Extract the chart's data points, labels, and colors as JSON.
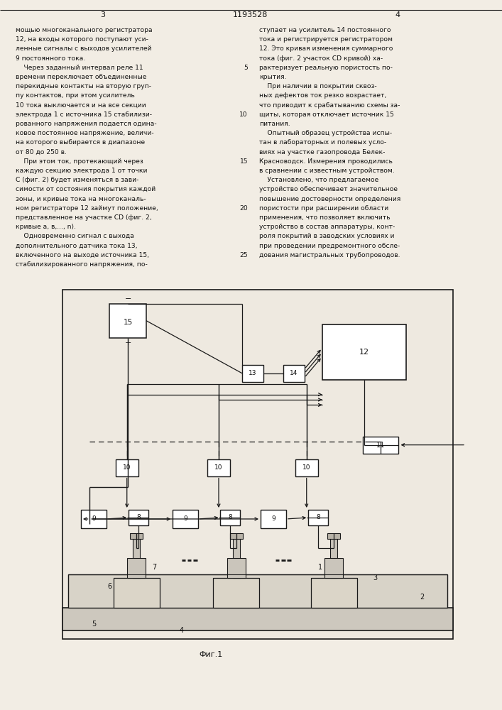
{
  "bg": "#f2ede4",
  "lc": "#1a1a1a",
  "bc": "#ffffff",
  "fig_label": "Фиг.1",
  "header_line": 1193528,
  "page_left": "3",
  "page_right": "4",
  "left_col": [
    "мощью многоканального регистратора",
    "12, на входы которого поступают уси-",
    "ленные сигналы с выходов усилителей",
    "9 постоянного тока.",
    "    Через заданный интервал реле 11",
    "времени переключает объединенные",
    "перекидные контакты на вторую груп-",
    "пу контактов, при этом усилитель",
    "10 тока выключается и на все секции",
    "электрода 1 с источника 15 стабилизи-",
    "рованного напряжения подается одина-",
    "ковое постоянное напряжение, величи-",
    "на которого выбирается в диапазоне",
    "от 80 до 250 в.",
    "    При этом ток, протекающий через",
    "каждую секцию электрода 1 от точки",
    "С (фиг. 2) будет изменяться в зави-",
    "симости от состояния покрытия каждой",
    "зоны, и кривые тока на многоканаль-",
    "ном регистраторе 12 займут положение,",
    "представленное на участке CD (фиг. 2,",
    "кривые a, в,..., n).",
    "    Одновременно сигнал с выхода",
    "дополнительного датчика тока 13,",
    "включенного на выходе источника 15,",
    "стабилизированного напряжения, по-"
  ],
  "right_col": [
    "ступает на усилитель 14 постоянного",
    "тока и регистрируется регистратором",
    "12. Это кривая изменения суммарного",
    "тока (фиг. 2 участок CD кривой) ха-",
    "рактеризует реальную пористость по-",
    "крытия.",
    "    При наличии в покрытии сквоз-",
    "ных дефектов ток резко возрастает,",
    "что приводит к срабатыванию схемы за-",
    "щиты, которая отключает источник 15",
    "питания.",
    "    Опытный образец устройства испы-",
    "тан в лабораторных и полевых усло-",
    "виях на участке газопровода Белек-",
    "Красноводск. Измерения проводились",
    "в сравнении с известным устройством.",
    "    Установлено, что предлагаемое",
    "устройство обеспечивает значительное",
    "повышение достоверности определения",
    "пористости при расширении области",
    "применения, что позволяет включить",
    "устройство в состав аппаратуры, конт-",
    "роля покрытий в заводских условиях и",
    "при проведении предремонтного обсле-",
    "дования магистральных трубопроводов."
  ],
  "line_numbers": {
    "4": 4,
    "9": 9,
    "14": 14,
    "19": 19,
    "24": 24
  },
  "line_number_vals": [
    "5",
    "10",
    "15",
    "20",
    "25"
  ]
}
